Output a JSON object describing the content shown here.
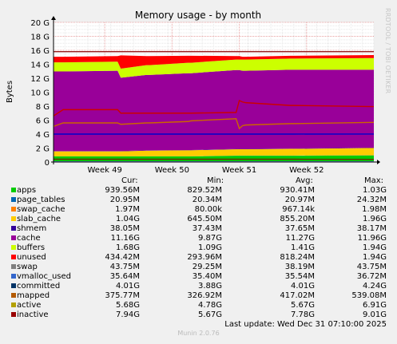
{
  "chart_data": {
    "type": "area",
    "title": "Memory usage - by month",
    "ylabel": "Bytes",
    "xlabel": "",
    "ylim": [
      0,
      20
    ],
    "y_unit": "G",
    "y_ticks": [
      "0",
      "2 G",
      "4 G",
      "6 G",
      "8 G",
      "10 G",
      "12 G",
      "14 G",
      "16 G",
      "18 G",
      "20 G"
    ],
    "x_ticks": [
      "Week 49",
      "Week 50",
      "Week 51",
      "Week 52"
    ],
    "x_tick_positions": [
      0.16,
      0.37,
      0.58,
      0.79
    ],
    "grid": true,
    "x": [
      0,
      0.03,
      0.2,
      0.21,
      0.29,
      0.3,
      0.42,
      0.43,
      0.57,
      0.58,
      0.59,
      0.6,
      0.74,
      0.75,
      1.0
    ],
    "stacked_series": [
      {
        "name": "apps",
        "color": "#00cc00",
        "values": [
          0.8,
          0.8,
          0.8,
          0.8,
          0.8,
          0.8,
          0.8,
          0.8,
          0.9,
          0.9,
          0.9,
          0.9,
          0.9,
          0.9,
          0.94
        ]
      },
      {
        "name": "page_tables",
        "color": "#0066b3",
        "values": [
          0.02,
          0.02,
          0.02,
          0.02,
          0.02,
          0.02,
          0.02,
          0.02,
          0.02,
          0.02,
          0.02,
          0.02,
          0.02,
          0.02,
          0.02
        ]
      },
      {
        "name": "swap_cache",
        "color": "#ff8000",
        "values": [
          0.01,
          0.01,
          0.01,
          0.01,
          0.01,
          0.01,
          0.01,
          0.01,
          0.01,
          0.01,
          0.01,
          0.01,
          0.01,
          0.01,
          0.01
        ]
      },
      {
        "name": "slab_cache",
        "color": "#ffcc00",
        "values": [
          0.7,
          0.7,
          0.7,
          0.7,
          0.8,
          0.8,
          0.85,
          0.85,
          0.9,
          0.9,
          0.9,
          0.9,
          0.95,
          0.95,
          1.04
        ]
      },
      {
        "name": "shmem",
        "color": "#330099",
        "values": [
          0.04,
          0.04,
          0.04,
          0.04,
          0.04,
          0.04,
          0.04,
          0.04,
          0.04,
          0.04,
          0.04,
          0.04,
          0.04,
          0.04,
          0.04
        ]
      },
      {
        "name": "cache",
        "color": "#990099",
        "values": [
          11.4,
          11.4,
          11.5,
          10.5,
          10.8,
          10.8,
          11.0,
          11.0,
          11.3,
          11.3,
          11.2,
          11.2,
          11.3,
          11.3,
          11.16
        ]
      },
      {
        "name": "buffers",
        "color": "#ccff00",
        "values": [
          1.3,
          1.3,
          1.3,
          1.3,
          1.4,
          1.4,
          1.5,
          1.5,
          1.5,
          1.5,
          1.6,
          1.6,
          1.6,
          1.6,
          1.68
        ]
      },
      {
        "name": "unused",
        "color": "#ff0000",
        "values": [
          0.8,
          0.8,
          0.8,
          1.9,
          1.3,
          1.3,
          1.0,
          1.0,
          0.5,
          0.5,
          0.4,
          0.4,
          0.4,
          0.4,
          0.43
        ]
      }
    ],
    "line_series": [
      {
        "name": "committed",
        "color": "#0000cc",
        "values": [
          4.0,
          4.0,
          4.0,
          4.0,
          4.0,
          4.0,
          4.0,
          4.0,
          4.0,
          4.0,
          4.0,
          4.0,
          4.0,
          4.0,
          4.01
        ]
      },
      {
        "name": "mapped",
        "color": "#663300",
        "values": [
          0.4,
          0.4,
          0.4,
          0.4,
          0.4,
          0.4,
          0.4,
          0.4,
          0.4,
          0.4,
          0.4,
          0.4,
          0.4,
          0.4,
          0.38
        ]
      },
      {
        "name": "active",
        "color": "#cc6600",
        "values": [
          5.1,
          5.6,
          5.6,
          5.4,
          5.6,
          5.6,
          5.8,
          5.9,
          6.2,
          4.8,
          5.2,
          5.3,
          5.5,
          5.5,
          5.68
        ]
      },
      {
        "name": "inactive",
        "color": "#cc0000",
        "values": [
          6.6,
          7.5,
          7.5,
          7.0,
          7.0,
          7.0,
          7.0,
          7.0,
          7.1,
          8.8,
          8.6,
          8.5,
          8.1,
          8.1,
          7.94
        ]
      },
      {
        "name": "swap",
        "color": "#8080ff",
        "values": [
          0.04,
          0.04,
          0.04,
          0.04,
          0.04,
          0.04,
          0.04,
          0.04,
          0.04,
          0.04,
          0.04,
          0.04,
          0.04,
          0.04,
          0.04
        ]
      }
    ],
    "top_line": {
      "name": "total",
      "color": "#8b0000",
      "values": [
        15.8,
        15.8,
        15.8,
        15.8,
        15.8,
        15.8,
        15.8,
        15.8,
        15.8,
        15.8,
        15.8,
        15.8,
        15.8,
        15.8,
        15.8
      ]
    }
  },
  "legend": {
    "headers": {
      "cur": "Cur:",
      "min": "Min:",
      "avg": "Avg:",
      "max": "Max:"
    },
    "rows": [
      {
        "name": "apps",
        "color": "#00cc00",
        "cur": "939.56M",
        "min": "829.52M",
        "avg": "930.41M",
        "max": "1.03G"
      },
      {
        "name": "page_tables",
        "color": "#0066b3",
        "cur": "20.95M",
        "min": "20.34M",
        "avg": "20.97M",
        "max": "24.32M"
      },
      {
        "name": "swap_cache",
        "color": "#ff8000",
        "cur": "1.97M",
        "min": "80.00k",
        "avg": "967.14k",
        "max": "1.98M"
      },
      {
        "name": "slab_cache",
        "color": "#ffcc00",
        "cur": "1.04G",
        "min": "645.50M",
        "avg": "855.20M",
        "max": "1.96G"
      },
      {
        "name": "shmem",
        "color": "#330099",
        "cur": "38.05M",
        "min": "37.43M",
        "avg": "37.65M",
        "max": "38.17M"
      },
      {
        "name": "cache",
        "color": "#990099",
        "cur": "11.16G",
        "min": "9.87G",
        "avg": "11.27G",
        "max": "11.96G"
      },
      {
        "name": "buffers",
        "color": "#ccff00",
        "cur": "1.68G",
        "min": "1.09G",
        "avg": "1.41G",
        "max": "1.94G"
      },
      {
        "name": "unused",
        "color": "#ff0000",
        "cur": "434.42M",
        "min": "293.96M",
        "avg": "818.24M",
        "max": "1.94G"
      },
      {
        "name": "swap",
        "color": "#808080",
        "cur": "43.75M",
        "min": "29.25M",
        "avg": "38.19M",
        "max": "43.75M"
      },
      {
        "name": "vmalloc_used",
        "color": "#3366cc",
        "cur": "35.64M",
        "min": "35.40M",
        "avg": "35.54M",
        "max": "36.72M"
      },
      {
        "name": "committed",
        "color": "#003366",
        "cur": "4.01G",
        "min": "3.88G",
        "avg": "4.01G",
        "max": "4.24G"
      },
      {
        "name": "mapped",
        "color": "#b35a00",
        "cur": "375.77M",
        "min": "326.92M",
        "avg": "417.02M",
        "max": "539.08M"
      },
      {
        "name": "active",
        "color": "#b3a000",
        "cur": "5.68G",
        "min": "4.78G",
        "avg": "5.67G",
        "max": "6.91G"
      },
      {
        "name": "inactive",
        "color": "#990000",
        "cur": "7.94G",
        "min": "5.67G",
        "avg": "7.78G",
        "max": "9.01G"
      }
    ]
  },
  "last_update": "Last update:  Wed Dec 31 07:10:00 2025",
  "footer": "Munin 2.0.76",
  "side_label": "RRDTOOL / TOBI OETIKER"
}
